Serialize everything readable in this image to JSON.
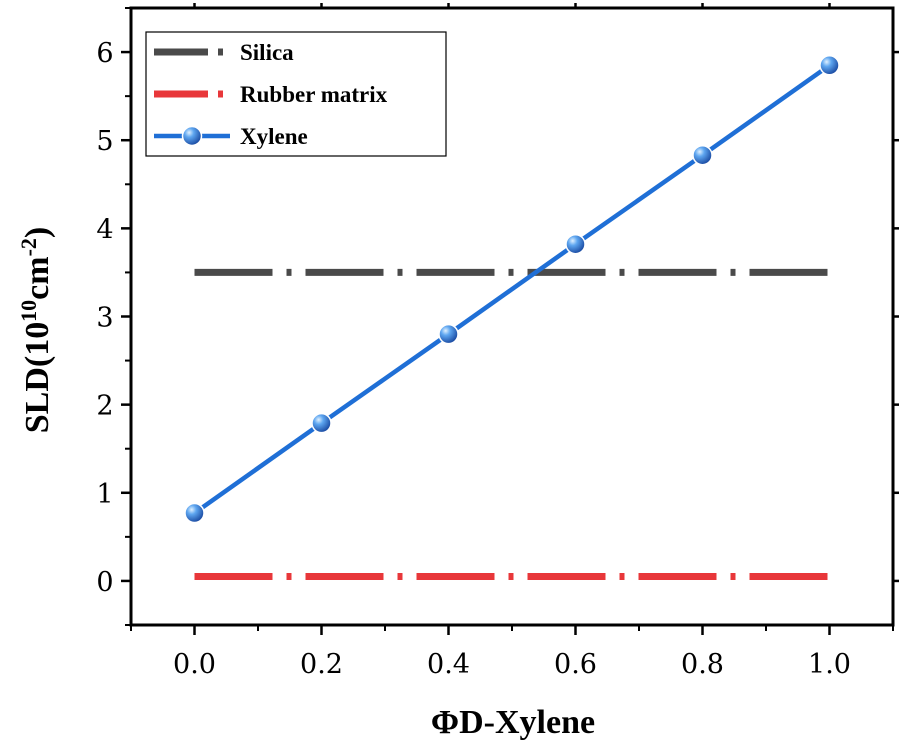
{
  "chart_data": {
    "type": "line",
    "xlabel": "ΦD-Xylene",
    "ylabel": {
      "prefix": "SLD(10",
      "exp1": "10",
      "mid": "cm",
      "exp2": "-2",
      "suffix": ")"
    },
    "xlim": [
      -0.1,
      1.1
    ],
    "ylim": [
      -0.5,
      6.5
    ],
    "x_ticks": [
      {
        "value": 0.0,
        "label": "0.0"
      },
      {
        "value": 0.2,
        "label": "0.2"
      },
      {
        "value": 0.4,
        "label": "0.4"
      },
      {
        "value": 0.6,
        "label": "0.6"
      },
      {
        "value": 0.8,
        "label": "0.8"
      },
      {
        "value": 1.0,
        "label": "1.0"
      }
    ],
    "y_ticks": [
      {
        "value": 0,
        "label": "0"
      },
      {
        "value": 1,
        "label": "1"
      },
      {
        "value": 2,
        "label": "2"
      },
      {
        "value": 3,
        "label": "3"
      },
      {
        "value": 4,
        "label": "4"
      },
      {
        "value": 5,
        "label": "5"
      },
      {
        "value": 6,
        "label": "6"
      }
    ],
    "grid": false,
    "legend_position": "top-left",
    "series": [
      {
        "name": "Silica",
        "style": "dash-dot",
        "color": "#4a4a4a",
        "x": [
          0.0,
          1.0
        ],
        "y": [
          3.5,
          3.5
        ]
      },
      {
        "name": "Rubber matrix",
        "style": "dash-dot",
        "color": "#e8373a",
        "x": [
          0.0,
          1.0
        ],
        "y": [
          0.05,
          0.05
        ]
      },
      {
        "name": "Xylene",
        "style": "line-markers",
        "color": "#1f6fd6",
        "x": [
          0.0,
          0.2,
          0.4,
          0.6,
          0.8,
          1.0
        ],
        "y": [
          0.77,
          1.79,
          2.8,
          3.82,
          4.83,
          5.85
        ]
      }
    ]
  }
}
